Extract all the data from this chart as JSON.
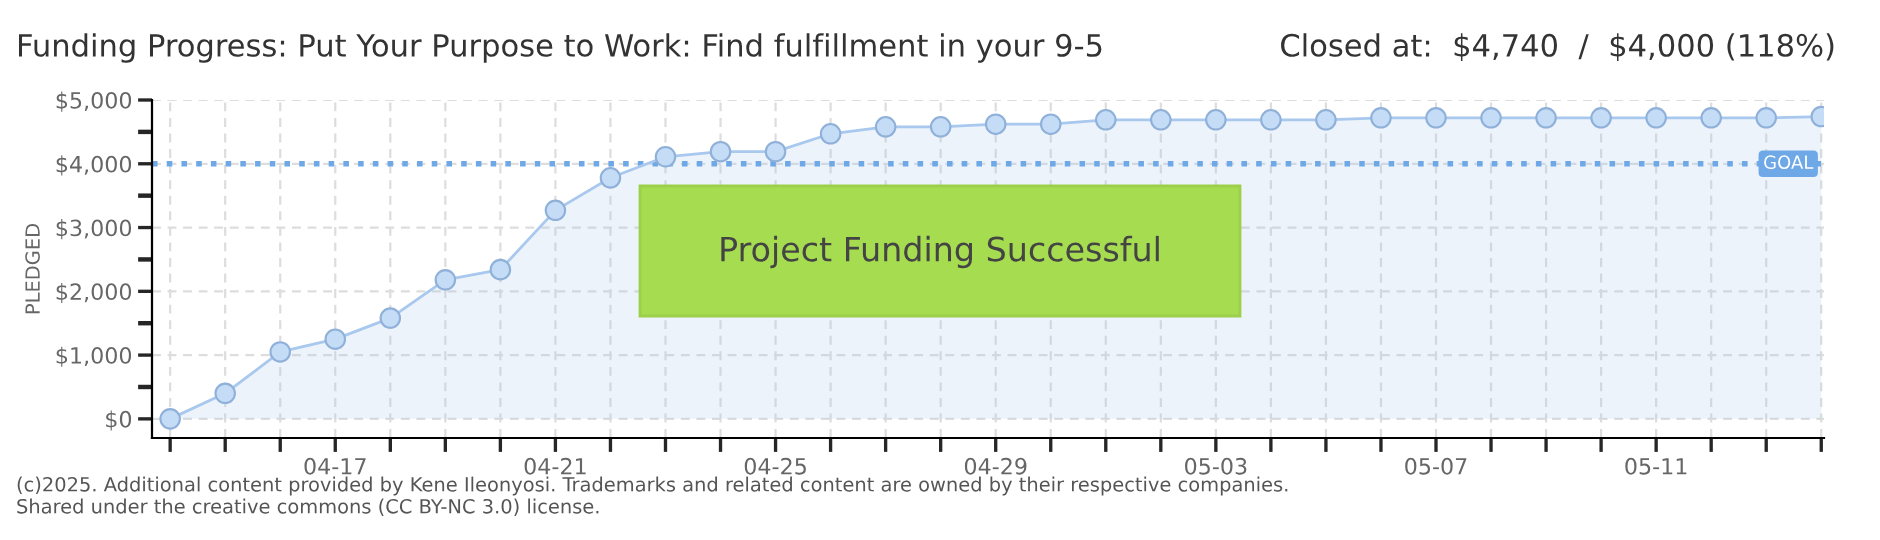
{
  "chart_data": {
    "type": "area",
    "title": "Funding Progress: Put Your Purpose to Work: Find fulfillment in your 9-5",
    "subtitle": "Closed at:  $4,740  /  $4,000 (118%)",
    "ylabel": "PLEDGED",
    "categories": [
      null,
      null,
      null,
      "04-17",
      null,
      null,
      null,
      "04-21",
      null,
      null,
      null,
      "04-25",
      null,
      null,
      null,
      "04-29",
      null,
      null,
      null,
      "05-03",
      null,
      null,
      null,
      "05-07",
      null,
      null,
      null,
      "05-11",
      null,
      null,
      null
    ],
    "series": [
      {
        "color": "#a8c8ee",
        "values": [
          0,
          400,
          1050,
          1250,
          1580,
          2180,
          2340,
          3270,
          3780,
          4110,
          4190,
          4190,
          4470,
          4580,
          4580,
          4620,
          4620,
          4690,
          4690,
          4690,
          4690,
          4690,
          4720,
          4720,
          4720,
          4720,
          4720,
          4720,
          4720,
          4720,
          4740
        ]
      }
    ],
    "ylim": [
      -300,
      5000
    ],
    "yticks": [
      {
        "value": 0,
        "label": "$0"
      },
      {
        "value": 500,
        "label": null
      },
      {
        "value": 1000,
        "label": "$1,000"
      },
      {
        "value": 1500,
        "label": null
      },
      {
        "value": 2000,
        "label": "$2,000"
      },
      {
        "value": 2500,
        "label": null
      },
      {
        "value": 3000,
        "label": "$3,000"
      },
      {
        "value": 3500,
        "label": null
      },
      {
        "value": 4000,
        "label": "$4,000"
      },
      {
        "value": 4500,
        "label": null
      },
      {
        "value": 5000,
        "label": "$5,000"
      }
    ],
    "grid": true,
    "marker": "circle",
    "line_style": "solid",
    "ref_lines": [
      {
        "axis": "y",
        "value": 4000,
        "label": "GOAL",
        "color": "#6fa8e6",
        "line_style": "dotted"
      }
    ],
    "annotations": [
      "Project Funding Successful",
      "(c)2025. Additional content provided by Kene Ileonyosi. Trademarks and related content are owned by their respective companies.",
      "Shared under the creative commons (CC BY-NC 3.0) license."
    ]
  }
}
